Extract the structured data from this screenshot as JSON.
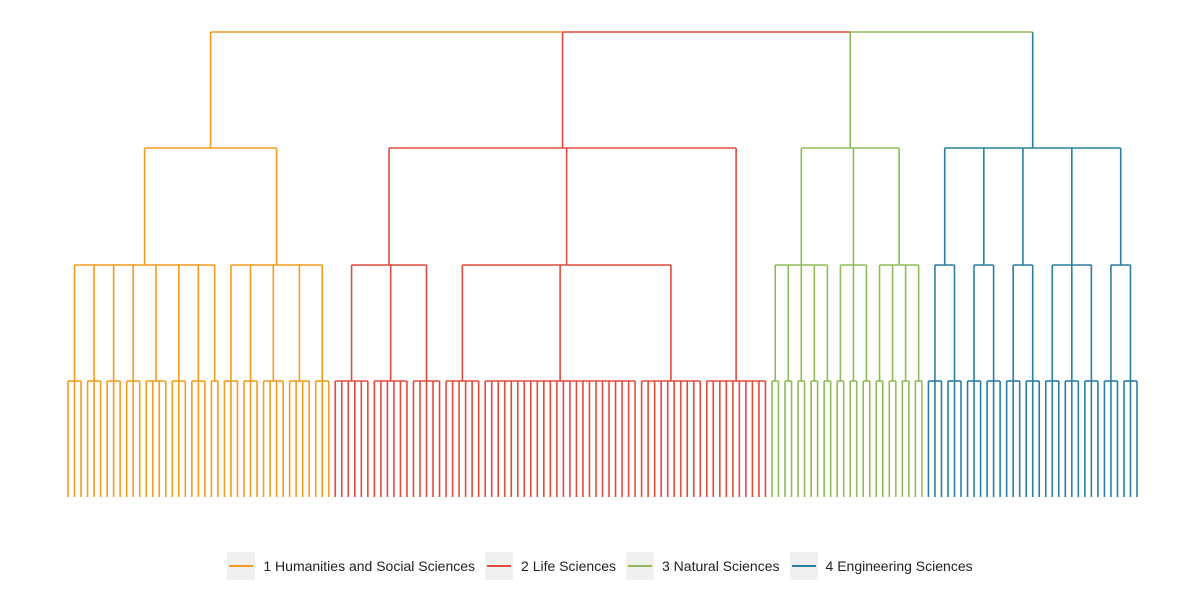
{
  "legend": {
    "items": [
      {
        "label": "1 Humanities and Social Sciences",
        "color": "#f39c1f"
      },
      {
        "label": "2 Life Sciences",
        "color": "#e04a3f"
      },
      {
        "label": "3 Natural Sciences",
        "color": "#8fbc5a"
      },
      {
        "label": "4 Engineering Sciences",
        "color": "#2a7fa0"
      }
    ]
  }
}
